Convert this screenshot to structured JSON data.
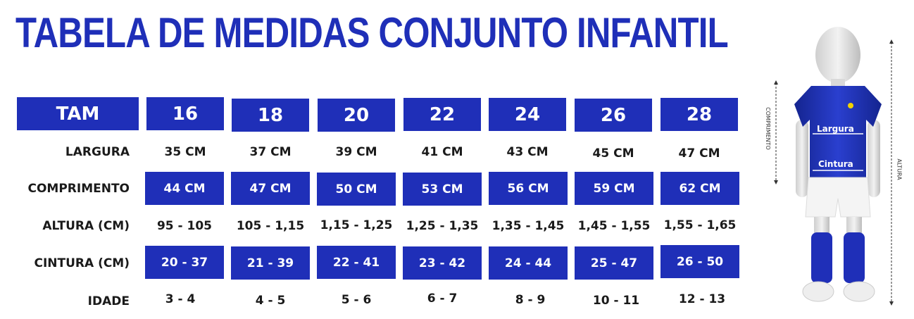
{
  "title": "TABELA DE MEDIDAS CONJUNTO INFANTIL",
  "header": {
    "label": "TAM",
    "sizes": [
      "16",
      "18",
      "20",
      "22",
      "24",
      "26",
      "28"
    ]
  },
  "rows": {
    "largura": {
      "label": "LARGURA",
      "values": [
        "35 CM",
        "37 CM",
        "39 CM",
        "41 CM",
        "43 CM",
        "45 CM",
        "47 CM"
      ]
    },
    "comprimento": {
      "label": "COMPRIMENTO",
      "values": [
        "44 CM",
        "47 CM",
        "50 CM",
        "53 CM",
        "56 CM",
        "59 CM",
        "62 CM"
      ]
    },
    "altura": {
      "label": "ALTURA  (CM)",
      "values": [
        "95 - 105",
        "105 - 1,15",
        "1,15 - 1,25",
        "1,25 - 1,35",
        "1,35 - 1,45",
        "1,45 - 1,55",
        "1,55 - 1,65"
      ]
    },
    "cintura": {
      "label": "CINTURA (CM)",
      "values": [
        "20 - 37",
        "21 - 39",
        "22 - 41",
        "23 - 42",
        "24 - 44",
        "25 - 47",
        "26 - 50"
      ]
    },
    "idade": {
      "label": "IDADE",
      "values": [
        "3 - 4",
        "4 - 5",
        "5 - 6",
        "6 - 7",
        "8 - 9",
        "10 - 11",
        "12 - 13"
      ]
    }
  },
  "figure": {
    "largura_label": "Largura",
    "cintura_label": "Cintura",
    "comprimento_label": "COMPRIMENTO",
    "altura_label": "ALTURA"
  },
  "colors": {
    "accent": "#1f2fb8",
    "text": "#1a1a1a"
  }
}
